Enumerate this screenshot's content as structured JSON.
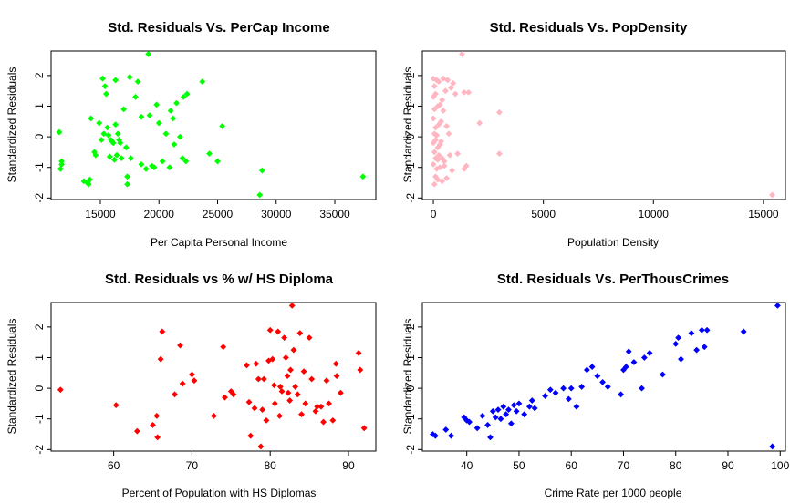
{
  "chart_data": [
    {
      "type": "scatter",
      "title": "Std. Residuals Vs. PerCap Income",
      "xlabel": "Per Capita Personal Income",
      "ylabel": "Standardized Residuals",
      "xlim": [
        10800,
        38500
      ],
      "ylim": [
        -2.05,
        2.8
      ],
      "xticks": [
        15000,
        20000,
        25000,
        30000,
        35000
      ],
      "yticks": [
        -2,
        -1,
        0,
        1,
        2
      ],
      "grid": false,
      "marker_color": "#00ff00",
      "x": [
        11500,
        11700,
        11700,
        11600,
        13600,
        13900,
        14000,
        14100,
        14200,
        14500,
        14600,
        14900,
        15100,
        15200,
        15300,
        15400,
        15500,
        15600,
        15700,
        15800,
        15900,
        16000,
        16100,
        16200,
        16300,
        16300,
        16400,
        16500,
        16600,
        16700,
        16800,
        17000,
        17200,
        17300,
        17300,
        17500,
        17600,
        18000,
        18200,
        18500,
        18500,
        18900,
        19100,
        19200,
        19400,
        19600,
        19800,
        20000,
        20300,
        20600,
        20900,
        21000,
        21200,
        21300,
        21500,
        21800,
        22000,
        22100,
        22300,
        22400,
        23700,
        24300,
        25000,
        25400,
        28600,
        28800,
        37400
      ],
      "y": [
        0.15,
        -0.8,
        -0.9,
        -1.05,
        -1.45,
        -1.5,
        -1.55,
        -1.4,
        0.6,
        -0.5,
        -0.6,
        0.45,
        -0.1,
        1.9,
        0.1,
        1.65,
        1.4,
        0.3,
        0.05,
        -0.65,
        -0.1,
        -0.15,
        -0.2,
        -0.75,
        1.85,
        0.4,
        -0.6,
        0.1,
        -0.1,
        -0.2,
        -0.7,
        0.9,
        -0.35,
        -1.3,
        -1.55,
        1.95,
        -0.7,
        1.3,
        1.8,
        0.65,
        -0.9,
        -1.05,
        2.7,
        0.7,
        -0.95,
        -1.0,
        1.05,
        0.45,
        -0.8,
        0.1,
        -1.0,
        0.85,
        0.6,
        -0.25,
        1.1,
        0.0,
        -0.7,
        1.3,
        -0.8,
        1.4,
        1.8,
        -0.55,
        -0.8,
        0.35,
        -1.9,
        -1.1,
        -1.3
      ]
    },
    {
      "type": "scatter",
      "title": "Std. Residuals Vs. PopDensity",
      "xlabel": "Population Density",
      "ylabel": "Standardized Residuals",
      "xlim": [
        -500,
        16000
      ],
      "ylim": [
        -2.05,
        2.8
      ],
      "xticks": [
        0,
        5000,
        10000,
        15000
      ],
      "yticks": [
        -2,
        -1,
        0,
        1,
        2
      ],
      "grid": false,
      "marker_color": "#ffb6c1",
      "x": [
        0,
        0,
        0,
        0,
        0,
        50,
        50,
        50,
        50,
        50,
        100,
        100,
        100,
        100,
        100,
        150,
        150,
        150,
        200,
        200,
        200,
        200,
        250,
        250,
        250,
        300,
        300,
        300,
        350,
        350,
        400,
        400,
        400,
        450,
        450,
        500,
        500,
        550,
        600,
        600,
        650,
        700,
        750,
        800,
        850,
        900,
        1000,
        1100,
        1300,
        1400,
        1400,
        1500,
        1600,
        2100,
        3000,
        3000,
        15400
      ],
      "y": [
        1.9,
        1.3,
        0.6,
        -0.2,
        -0.9,
        1.65,
        0.9,
        0.1,
        -0.5,
        -1.55,
        1.4,
        0.3,
        -0.1,
        -0.7,
        -1.3,
        1.85,
        0.05,
        -1.05,
        1.0,
        -0.35,
        -0.75,
        -1.4,
        1.8,
        0.4,
        -0.6,
        1.05,
        -0.25,
        -1.0,
        0.5,
        -0.15,
        1.2,
        -0.7,
        -1.45,
        1.9,
        0.85,
        -0.8,
        -0.95,
        1.5,
        0.35,
        -1.35,
        1.85,
        0.1,
        -0.6,
        1.6,
        -1.1,
        1.75,
        1.4,
        -0.55,
        2.7,
        1.45,
        -1.05,
        -0.95,
        1.45,
        0.45,
        0.8,
        -0.55,
        -1.9
      ]
    },
    {
      "type": "scatter",
      "title": "Std. Residuals vs % w/ HS Diploma",
      "xlabel": "Percent of Population with HS Diplomas",
      "ylabel": "Standardized Residuals",
      "xlim": [
        52,
        93.5
      ],
      "ylim": [
        -2.05,
        2.8
      ],
      "xticks": [
        60,
        70,
        80,
        90
      ],
      "yticks": [
        -2,
        -1,
        0,
        1,
        2
      ],
      "grid": false,
      "marker_color": "#ff0000",
      "x": [
        53.2,
        60.3,
        63.0,
        65.0,
        65.5,
        65.6,
        66.0,
        66.2,
        67.8,
        68.5,
        68.8,
        70.0,
        70.3,
        72.8,
        74.0,
        74.2,
        75.0,
        75.3,
        77.0,
        77.3,
        77.5,
        78.0,
        78.2,
        78.5,
        78.8,
        79.0,
        79.2,
        79.5,
        79.8,
        80.0,
        80.3,
        80.5,
        80.6,
        81.0,
        81.2,
        81.3,
        81.5,
        81.8,
        82.0,
        82.2,
        82.3,
        82.5,
        82.6,
        82.8,
        83.0,
        83.2,
        83.5,
        83.8,
        84.0,
        84.3,
        84.5,
        85.0,
        85.3,
        85.8,
        86.0,
        86.5,
        86.8,
        87.2,
        87.5,
        88.0,
        88.4,
        88.5,
        89.0,
        91.3,
        91.5,
        92.0
      ],
      "y": [
        -0.05,
        -0.55,
        -1.4,
        -1.2,
        -0.9,
        -1.6,
        0.95,
        1.85,
        -0.2,
        1.4,
        0.15,
        0.45,
        0.25,
        -0.9,
        1.35,
        -0.3,
        -0.1,
        -0.2,
        0.75,
        -0.45,
        -1.55,
        -0.65,
        0.8,
        0.3,
        -1.9,
        -0.7,
        0.3,
        -1.05,
        0.9,
        1.9,
        0.95,
        0.1,
        -0.5,
        1.85,
        -0.9,
        0.05,
        -0.1,
        1.65,
        1.0,
        0.4,
        -0.15,
        -0.4,
        0.6,
        2.7,
        1.25,
        0.05,
        -0.2,
        1.8,
        -0.85,
        0.55,
        -0.5,
        1.65,
        0.3,
        -0.75,
        -0.6,
        -0.6,
        -1.1,
        0.25,
        -0.5,
        -1.05,
        0.8,
        0.4,
        -0.15,
        1.15,
        0.6,
        -1.3
      ]
    },
    {
      "type": "scatter",
      "title": "Std. Residuals Vs. PerThousCrimes",
      "xlabel": "Crime Rate per 1000 people",
      "ylabel": "Standardized Residuals",
      "xlim": [
        31.5,
        101
      ],
      "ylim": [
        -2.05,
        2.8
      ],
      "xticks": [
        40,
        50,
        60,
        70,
        80,
        90,
        100
      ],
      "yticks": [
        -2,
        -1,
        0,
        1,
        2
      ],
      "grid": false,
      "marker_color": "#0000ff",
      "x": [
        33.5,
        34.0,
        36.0,
        37.0,
        39.5,
        40.0,
        40.5,
        42.0,
        43.0,
        44.0,
        44.5,
        45.0,
        45.5,
        46.0,
        46.5,
        47.0,
        47.5,
        48.0,
        48.5,
        49.0,
        49.5,
        50.0,
        51.0,
        52.0,
        52.5,
        53.0,
        55.0,
        56.0,
        57.0,
        58.5,
        59.5,
        60.0,
        61.0,
        62.0,
        63.0,
        64.0,
        65.0,
        66.0,
        67.0,
        69.5,
        70.0,
        70.5,
        71.0,
        72.0,
        73.5,
        74.0,
        75.0,
        77.5,
        80.0,
        80.5,
        81.0,
        83.0,
        84.0,
        85.0,
        85.5,
        86.0,
        93.0,
        98.5,
        99.5
      ],
      "y": [
        -1.5,
        -1.55,
        -1.35,
        -1.55,
        -0.95,
        -1.05,
        -1.1,
        -1.3,
        -0.9,
        -1.2,
        -1.6,
        -0.75,
        -0.95,
        -0.7,
        -1.0,
        -0.6,
        -0.85,
        -0.7,
        -1.15,
        -0.55,
        -0.75,
        -0.5,
        -0.85,
        -0.6,
        -0.4,
        -0.65,
        -0.25,
        -0.05,
        -0.15,
        0.0,
        -0.35,
        0.0,
        -0.6,
        0.05,
        0.6,
        0.7,
        0.4,
        0.2,
        0.05,
        -0.2,
        0.6,
        0.7,
        1.2,
        0.85,
        0.0,
        1.0,
        1.15,
        0.45,
        1.45,
        1.65,
        0.95,
        1.8,
        1.25,
        1.9,
        1.35,
        1.9,
        1.85,
        -1.9,
        2.7
      ]
    }
  ]
}
